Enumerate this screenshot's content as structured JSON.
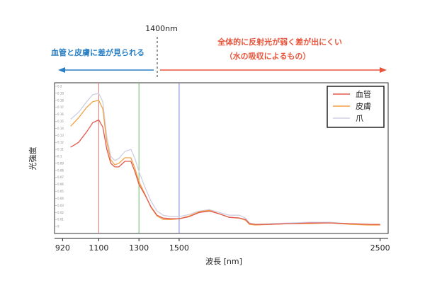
{
  "chart_data": {
    "type": "line",
    "title": "",
    "xlabel": "波長 [nm]",
    "ylabel": "光強度",
    "xlim": [
      880,
      2540
    ],
    "ylim": [
      -0.01,
      0.205
    ],
    "xticks": [
      920,
      1100,
      1300,
      1500,
      2500
    ],
    "yticks": [
      0,
      0.01,
      0.02,
      0.03,
      0.04,
      0.05,
      0.06,
      0.07,
      0.08,
      0.09,
      0.1,
      0.11,
      0.12,
      0.13,
      0.14,
      0.15,
      0.16,
      0.17,
      0.18,
      0.19,
      0.2
    ],
    "ytick_labels": [
      "0",
      "0.01",
      "0.02",
      "0.03",
      "0.04",
      "0.05",
      "0.06",
      "0.07",
      "0.08",
      "0.09",
      "0.1",
      "0.11",
      "0.12",
      "0.13",
      "0.14",
      "0.15",
      "0.16",
      "0.17",
      "0.18",
      "0.19",
      "0.2"
    ],
    "grid": false,
    "legend_position": "top-right",
    "vlines": [
      {
        "x": 1100,
        "color": "#e57373"
      },
      {
        "x": 1300,
        "color": "#66bb6a"
      },
      {
        "x": 1500,
        "color": "#7b7bd6"
      }
    ],
    "series": [
      {
        "name": "血管",
        "color": "#e05a4e",
        "x": [
          960,
          1000,
          1040,
          1070,
          1100,
          1120,
          1140,
          1160,
          1180,
          1200,
          1230,
          1260,
          1280,
          1300,
          1330,
          1360,
          1390,
          1420,
          1460,
          1500,
          1550,
          1600,
          1650,
          1700,
          1750,
          1800,
          1830,
          1850,
          1880,
          1950,
          2050,
          2150,
          2250,
          2350,
          2450,
          2500
        ],
        "y": [
          0.113,
          0.12,
          0.135,
          0.148,
          0.152,
          0.142,
          0.11,
          0.09,
          0.085,
          0.085,
          0.093,
          0.093,
          0.078,
          0.06,
          0.045,
          0.028,
          0.016,
          0.012,
          0.011,
          0.011,
          0.014,
          0.02,
          0.022,
          0.018,
          0.013,
          0.012,
          0.01,
          0.004,
          0.003,
          0.003,
          0.004,
          0.005,
          0.005,
          0.004,
          0.003,
          0.003
        ]
      },
      {
        "name": "皮膚",
        "color": "#f2a246",
        "x": [
          960,
          1000,
          1040,
          1070,
          1100,
          1120,
          1140,
          1160,
          1180,
          1200,
          1230,
          1260,
          1280,
          1300,
          1330,
          1360,
          1390,
          1420,
          1460,
          1500,
          1550,
          1600,
          1650,
          1700,
          1750,
          1800,
          1830,
          1850,
          1880,
          1950,
          2050,
          2150,
          2250,
          2350,
          2450,
          2500
        ],
        "y": [
          0.143,
          0.155,
          0.17,
          0.178,
          0.18,
          0.168,
          0.12,
          0.095,
          0.088,
          0.09,
          0.098,
          0.098,
          0.083,
          0.064,
          0.046,
          0.027,
          0.015,
          0.01,
          0.01,
          0.011,
          0.015,
          0.021,
          0.023,
          0.018,
          0.013,
          0.012,
          0.009,
          0.003,
          0.002,
          0.003,
          0.004,
          0.004,
          0.005,
          0.003,
          0.002,
          0.002
        ]
      },
      {
        "name": "爪",
        "color": "#cfcfe3",
        "x": [
          960,
          1000,
          1040,
          1070,
          1100,
          1120,
          1140,
          1160,
          1180,
          1200,
          1230,
          1260,
          1280,
          1300,
          1330,
          1360,
          1390,
          1420,
          1460,
          1500,
          1550,
          1600,
          1650,
          1700,
          1750,
          1800,
          1830,
          1850,
          1880,
          1950,
          2050,
          2150,
          2250,
          2350,
          2450,
          2500
        ],
        "y": [
          0.153,
          0.163,
          0.178,
          0.188,
          0.19,
          0.178,
          0.128,
          0.1,
          0.094,
          0.097,
          0.107,
          0.11,
          0.097,
          0.078,
          0.056,
          0.036,
          0.022,
          0.016,
          0.014,
          0.014,
          0.017,
          0.022,
          0.024,
          0.02,
          0.016,
          0.016,
          0.012,
          0.005,
          0.003,
          0.004,
          0.005,
          0.006,
          0.006,
          0.004,
          0.003,
          0.002
        ]
      }
    ]
  },
  "annotations": {
    "boundary_label": "1400nm",
    "left_text": "血管と皮膚に差が見られる",
    "right_text_line1": "全体的に反射光が弱く差が出にくい",
    "right_text_line2": "（水の吸収によるもの）",
    "left_color": "#2a7fc4",
    "right_color": "#e8543a"
  }
}
